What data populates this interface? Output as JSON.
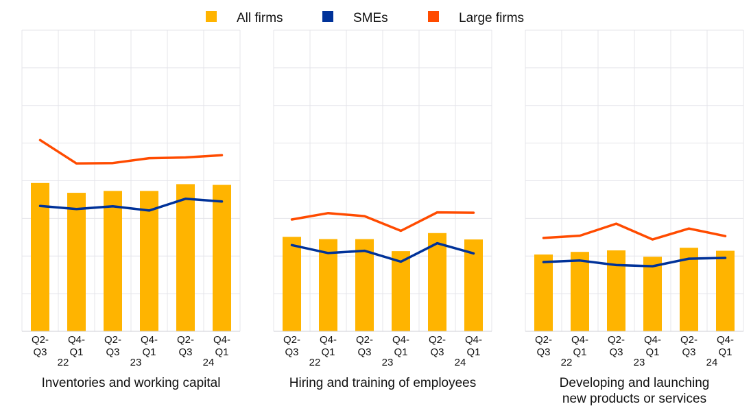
{
  "legend": [
    {
      "label": "All firms",
      "color": "#FFB400",
      "marker": "square"
    },
    {
      "label": "SMEs",
      "color": "#003299",
      "marker": "square"
    },
    {
      "label": "Large firms",
      "color": "#FF4B00",
      "marker": "square"
    }
  ],
  "chart_data": [
    {
      "type": "bar",
      "title": "Inventories and working capital",
      "categories": [
        "Q2-Q3",
        "Q4-Q1",
        "Q2-Q3",
        "Q4-Q1",
        "Q2-Q3",
        "Q4-Q1"
      ],
      "tick_lines": [
        [
          "Q2-",
          "Q3"
        ],
        [
          "Q4-",
          "Q1"
        ],
        [
          "Q2-",
          "Q3"
        ],
        [
          "Q4-",
          "Q1"
        ],
        [
          "Q2-",
          "Q3"
        ],
        [
          "Q4-",
          "Q1"
        ]
      ],
      "year_labels": [
        "22",
        "23",
        "24"
      ],
      "ylim": [
        0,
        0.8
      ],
      "grid": true,
      "legend_position": "top",
      "series": [
        {
          "name": "All firms",
          "kind": "bar",
          "color": "#FFB400",
          "values": [
            0.394,
            0.368,
            0.373,
            0.373,
            0.391,
            0.389
          ]
        },
        {
          "name": "SMEs",
          "kind": "line",
          "color": "#003299",
          "values": [
            0.333,
            0.325,
            0.332,
            0.321,
            0.352,
            0.345
          ]
        },
        {
          "name": "Large firms",
          "kind": "line",
          "color": "#FF4B00",
          "values": [
            0.508,
            0.446,
            0.447,
            0.46,
            0.462,
            0.468
          ]
        }
      ]
    },
    {
      "type": "bar",
      "title": "Hiring and training of employees",
      "categories": [
        "Q2-Q3",
        "Q4-Q1",
        "Q2-Q3",
        "Q4-Q1",
        "Q2-Q3",
        "Q4-Q1"
      ],
      "tick_lines": [
        [
          "Q2-",
          "Q3"
        ],
        [
          "Q4-",
          "Q1"
        ],
        [
          "Q2-",
          "Q3"
        ],
        [
          "Q4-",
          "Q1"
        ],
        [
          "Q2-",
          "Q3"
        ],
        [
          "Q4-",
          "Q1"
        ]
      ],
      "year_labels": [
        "22",
        "23",
        "24"
      ],
      "ylim": [
        0,
        0.8
      ],
      "grid": true,
      "legend_position": "top",
      "series": [
        {
          "name": "All firms",
          "kind": "bar",
          "color": "#FFB400",
          "values": [
            0.251,
            0.245,
            0.245,
            0.213,
            0.261,
            0.244
          ]
        },
        {
          "name": "SMEs",
          "kind": "line",
          "color": "#003299",
          "values": [
            0.229,
            0.208,
            0.214,
            0.185,
            0.234,
            0.207
          ]
        },
        {
          "name": "Large firms",
          "kind": "line",
          "color": "#FF4B00",
          "values": [
            0.297,
            0.314,
            0.306,
            0.267,
            0.316,
            0.315
          ]
        }
      ]
    },
    {
      "type": "bar",
      "title": "Developing and launching new products or services",
      "title_lines": [
        "Developing and launching",
        "new products or services"
      ],
      "categories": [
        "Q2-Q3",
        "Q4-Q1",
        "Q2-Q3",
        "Q4-Q1",
        "Q2-Q3",
        "Q4-Q1"
      ],
      "tick_lines": [
        [
          "Q2-",
          "Q3"
        ],
        [
          "Q4-",
          "Q1"
        ],
        [
          "Q2-",
          "Q3"
        ],
        [
          "Q4-",
          "Q1"
        ],
        [
          "Q2-",
          "Q3"
        ],
        [
          "Q4-",
          "Q1"
        ]
      ],
      "year_labels": [
        "22",
        "23",
        "24"
      ],
      "ylim": [
        0,
        0.8
      ],
      "grid": true,
      "legend_position": "top",
      "series": [
        {
          "name": "All firms",
          "kind": "bar",
          "color": "#FFB400",
          "values": [
            0.204,
            0.211,
            0.215,
            0.198,
            0.222,
            0.214
          ]
        },
        {
          "name": "SMEs",
          "kind": "line",
          "color": "#003299",
          "values": [
            0.184,
            0.188,
            0.176,
            0.173,
            0.193,
            0.195
          ]
        },
        {
          "name": "Large firms",
          "kind": "line",
          "color": "#FF4B00",
          "values": [
            0.248,
            0.254,
            0.286,
            0.244,
            0.273,
            0.253
          ]
        }
      ]
    }
  ]
}
